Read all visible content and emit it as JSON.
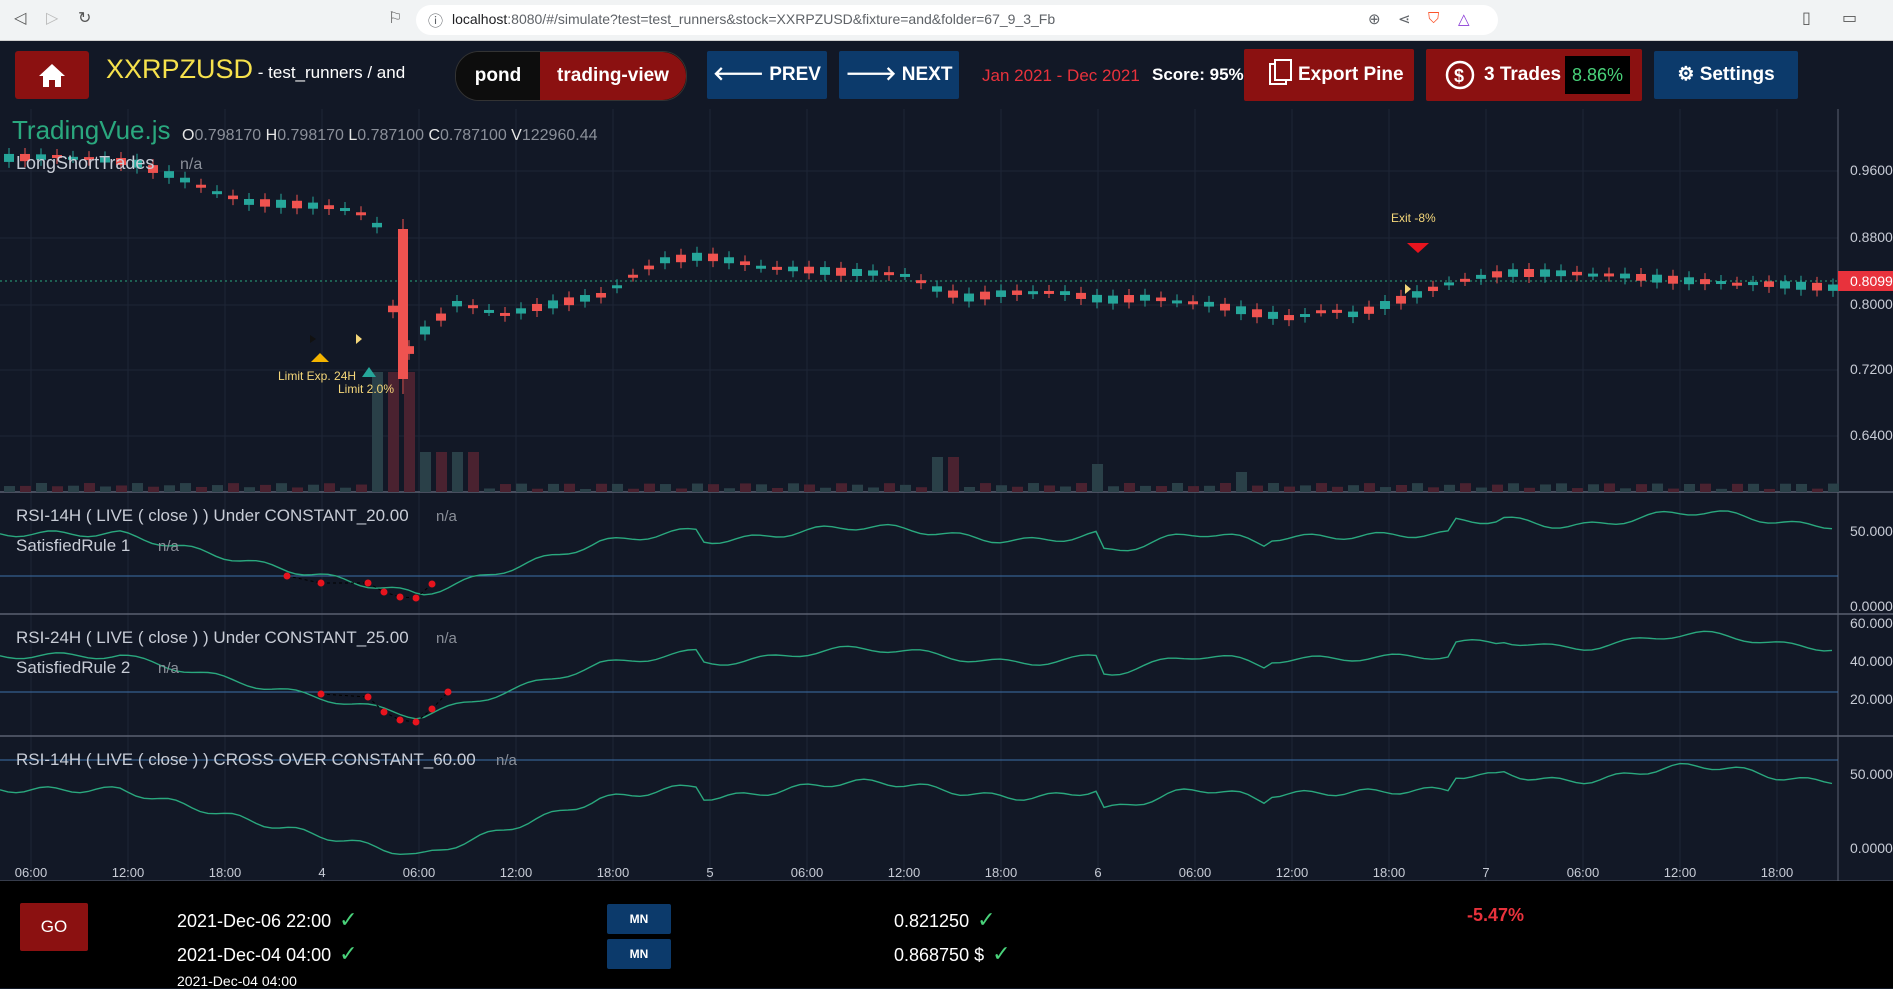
{
  "browser": {
    "url_host": "localhost",
    "url_rest": ":8080/#/simulate?test=test_runners&stock=XXRPZUSD&fixture=and&folder=67_9_3_Fb"
  },
  "header": {
    "symbol": "XXRPZUSD",
    "subtitle": " - test_runners / and",
    "view_toggle": {
      "left": "pond",
      "right": "trading-view"
    },
    "prev_label": "PREV",
    "next_label": "NEXT",
    "date_range": "Jan 2021 - Dec 2021",
    "score": "Score: 95%",
    "export_label": "Export Pine",
    "trades_label": "3 Trades",
    "trades_pct": "8.86%",
    "settings_label": "Settings"
  },
  "chart": {
    "legend": {
      "brand": "TradingVue.js",
      "ohlcv": [
        {
          "k": "O",
          "v": "0.798170"
        },
        {
          "k": "H",
          "v": "0.798170"
        },
        {
          "k": "L",
          "v": "0.787100"
        },
        {
          "k": "C",
          "v": "0.787100"
        },
        {
          "k": "V",
          "v": "122960.44"
        }
      ],
      "overlay": "LongShortTrades",
      "overlay_value": "n/a"
    },
    "price_axis": [
      "0.9600",
      "0.8800",
      "0.8000",
      "0.7200",
      "0.6400"
    ],
    "last_price": "0.8099",
    "annotations": {
      "limit_exp": "Limit Exp. 24H",
      "limit": "Limit 2.0%",
      "exit": "Exit -8%"
    },
    "panes": [
      {
        "title": "RSI-14H ( LIVE ( close ) ) Under CONSTANT_20.00",
        "value": "n/a",
        "sub": "SatisfiedRule 1",
        "sub_value": "n/a",
        "axis": [
          "50.0000",
          "0.0000"
        ]
      },
      {
        "title": "RSI-24H ( LIVE ( close ) ) Under CONSTANT_25.00",
        "value": "n/a",
        "sub": "SatisfiedRule 2",
        "sub_value": "n/a",
        "axis": [
          "60.0000",
          "40.0000",
          "20.0000"
        ]
      },
      {
        "title": "RSI-14H ( LIVE ( close ) ) CROSS OVER CONSTANT_60.00",
        "value": "n/a",
        "axis": [
          "50.0000",
          "0.0000"
        ]
      }
    ],
    "time_axis": [
      "06:00",
      "12:00",
      "18:00",
      "4",
      "06:00",
      "12:00",
      "18:00",
      "5",
      "06:00",
      "12:00",
      "18:00",
      "6",
      "06:00",
      "12:00",
      "18:00",
      "7",
      "06:00",
      "12:00",
      "18:00"
    ]
  },
  "footer": {
    "go_label": "GO",
    "date1": "2021-Dec-06 22:00",
    "date2": "2021-Dec-04 04:00",
    "date3": "2021-Dec-04 04:00",
    "mn1": "MN",
    "mn2": "MN",
    "price1": "0.821250",
    "price2": "0.868750 $",
    "pnl": "-5.47%"
  },
  "colors": {
    "up": "#26a69a",
    "down": "#ef5350",
    "accent_red": "#8b1111",
    "accent_blue": "#0c3a6b"
  }
}
